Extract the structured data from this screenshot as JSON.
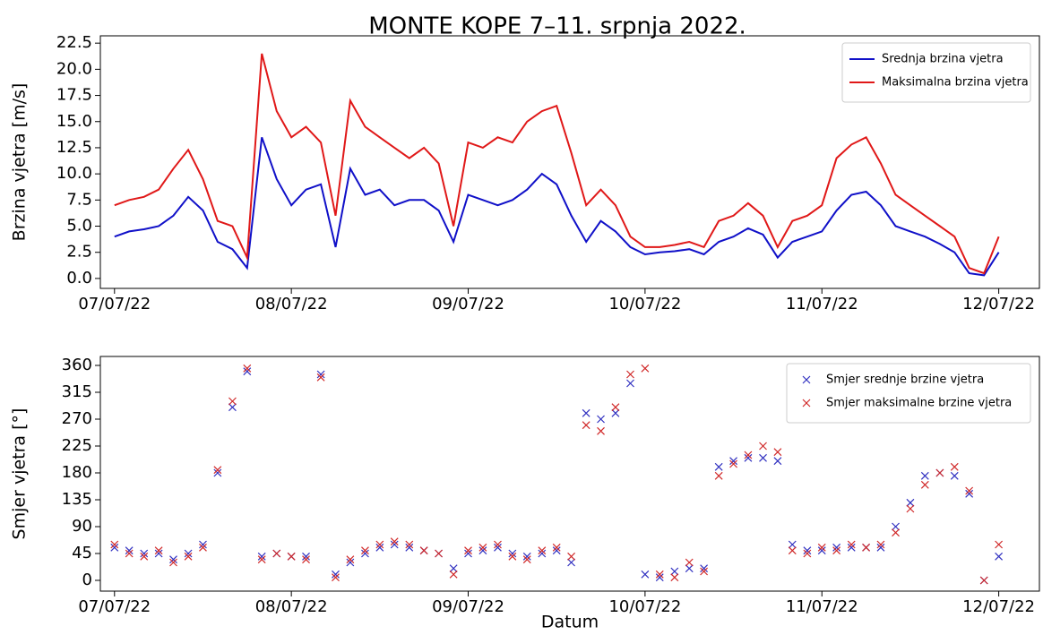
{
  "chart_data": [
    {
      "type": "line",
      "title": "MONTE KOPE 7–11. srpnja 2022.",
      "ylabel": "Brzina vjetra [m/s]",
      "x": [
        0,
        0.083,
        0.167,
        0.25,
        0.333,
        0.417,
        0.5,
        0.583,
        0.667,
        0.75,
        0.833,
        0.917,
        1,
        1.083,
        1.167,
        1.25,
        1.333,
        1.417,
        1.5,
        1.583,
        1.667,
        1.75,
        1.833,
        1.917,
        2,
        2.083,
        2.167,
        2.25,
        2.333,
        2.417,
        2.5,
        2.583,
        2.667,
        2.75,
        2.833,
        2.917,
        3,
        3.083,
        3.167,
        3.25,
        3.333,
        3.417,
        3.5,
        3.583,
        3.667,
        3.75,
        3.833,
        3.917,
        4,
        4.083,
        4.167,
        4.25,
        4.333,
        4.417,
        4.5,
        4.583,
        4.667,
        4.75,
        4.833,
        4.917,
        5
      ],
      "series": [
        {
          "name": "Srednja brzina vjetra",
          "color": "#1010c8",
          "values": [
            4.0,
            4.5,
            4.7,
            5.0,
            6.0,
            7.8,
            6.5,
            3.5,
            2.8,
            1.0,
            13.5,
            9.5,
            7.0,
            8.5,
            9.0,
            3.0,
            10.5,
            8.0,
            8.5,
            7.0,
            7.5,
            7.5,
            6.5,
            3.5,
            8.0,
            7.5,
            7.0,
            7.5,
            8.5,
            10.0,
            9.0,
            6.0,
            3.5,
            5.5,
            4.5,
            3.0,
            2.3,
            2.5,
            2.6,
            2.8,
            2.3,
            3.5,
            4.0,
            4.8,
            4.2,
            2.0,
            3.5,
            4.0,
            4.5,
            6.5,
            8.0,
            8.3,
            7.0,
            5.0,
            4.5,
            4.0,
            3.3,
            2.5,
            0.5,
            0.3,
            2.5
          ]
        },
        {
          "name": "Maksimalna brzina vjetra",
          "color": "#e01818",
          "values": [
            7.0,
            7.5,
            7.8,
            8.5,
            10.5,
            12.3,
            9.5,
            5.5,
            5.0,
            2.0,
            21.5,
            16.0,
            13.5,
            14.5,
            13.0,
            6.0,
            17.0,
            14.5,
            13.5,
            12.5,
            11.5,
            12.5,
            11.0,
            5.0,
            13.0,
            12.5,
            13.5,
            13.0,
            15.0,
            16.0,
            16.5,
            12.0,
            7.0,
            8.5,
            7.0,
            4.0,
            3.0,
            3.0,
            3.2,
            3.5,
            3.0,
            5.5,
            6.0,
            7.2,
            6.0,
            3.0,
            5.5,
            6.0,
            7.0,
            11.5,
            12.8,
            13.5,
            11.0,
            8.0,
            7.0,
            6.0,
            5.0,
            4.0,
            1.0,
            0.5,
            4.0
          ]
        }
      ],
      "xlim": [
        -0.08,
        5.23
      ],
      "ylim": [
        -0.95,
        23.2
      ],
      "xticks": [
        {
          "value": 0,
          "label": "07/07/22"
        },
        {
          "value": 1,
          "label": "08/07/22"
        },
        {
          "value": 2,
          "label": "09/07/22"
        },
        {
          "value": 3,
          "label": "10/07/22"
        },
        {
          "value": 4,
          "label": "11/07/22"
        },
        {
          "value": 5,
          "label": "12/07/22"
        }
      ],
      "yticks": [
        {
          "value": 0,
          "label": "0.0"
        },
        2.5,
        {
          "value": 5,
          "label": "5.0"
        },
        7.5,
        {
          "value": 10,
          "label": "10.0"
        },
        12.5,
        {
          "value": 15,
          "label": "15.0"
        },
        17.5,
        {
          "value": 20,
          "label": "20.0"
        },
        22.5
      ],
      "legend": "upper right"
    },
    {
      "type": "scatter",
      "xlabel": "Datum",
      "ylabel": "Smjer vjetra [°]",
      "x": [
        0,
        0.083,
        0.167,
        0.25,
        0.333,
        0.417,
        0.5,
        0.583,
        0.667,
        0.75,
        0.833,
        0.917,
        1,
        1.083,
        1.167,
        1.25,
        1.333,
        1.417,
        1.5,
        1.583,
        1.667,
        1.75,
        1.833,
        1.917,
        2,
        2.083,
        2.167,
        2.25,
        2.333,
        2.417,
        2.5,
        2.583,
        2.667,
        2.75,
        2.833,
        2.917,
        3,
        3.083,
        3.167,
        3.25,
        3.333,
        3.417,
        3.5,
        3.583,
        3.667,
        3.75,
        3.833,
        3.917,
        4,
        4.083,
        4.167,
        4.25,
        4.333,
        4.417,
        4.5,
        4.583,
        4.667,
        4.75,
        4.833,
        4.917,
        5
      ],
      "series": [
        {
          "name": "Smjer srednje brzine vjetra",
          "color": "#3030c0",
          "values": [
            55,
            50,
            45,
            45,
            35,
            45,
            60,
            180,
            290,
            350,
            40,
            45,
            40,
            40,
            345,
            10,
            30,
            45,
            55,
            60,
            55,
            50,
            45,
            20,
            45,
            50,
            55,
            45,
            40,
            45,
            50,
            30,
            280,
            270,
            280,
            330,
            10,
            5,
            15,
            20,
            20,
            190,
            200,
            205,
            205,
            200,
            60,
            50,
            50,
            55,
            55,
            55,
            55,
            90,
            130,
            175,
            180,
            175,
            145,
            0,
            40
          ]
        },
        {
          "name": "Smjer maksimalne brzine vjetra",
          "color": "#d02828",
          "values": [
            60,
            45,
            40,
            50,
            30,
            40,
            55,
            185,
            300,
            355,
            35,
            45,
            40,
            35,
            340,
            5,
            35,
            50,
            60,
            65,
            60,
            50,
            45,
            10,
            50,
            55,
            60,
            40,
            35,
            50,
            55,
            40,
            260,
            250,
            290,
            345,
            355,
            10,
            5,
            30,
            15,
            175,
            195,
            210,
            225,
            215,
            50,
            45,
            55,
            50,
            60,
            55,
            60,
            80,
            120,
            160,
            180,
            190,
            150,
            0,
            60
          ]
        }
      ],
      "xlim": [
        -0.08,
        5.23
      ],
      "ylim": [
        -18,
        375
      ],
      "xticks": [
        {
          "value": 0,
          "label": "07/07/22"
        },
        {
          "value": 1,
          "label": "08/07/22"
        },
        {
          "value": 2,
          "label": "09/07/22"
        },
        {
          "value": 3,
          "label": "10/07/22"
        },
        {
          "value": 4,
          "label": "11/07/22"
        },
        {
          "value": 5,
          "label": "12/07/22"
        }
      ],
      "yticks": [
        0,
        45,
        90,
        135,
        180,
        225,
        270,
        315,
        360
      ],
      "legend": "upper right"
    }
  ]
}
